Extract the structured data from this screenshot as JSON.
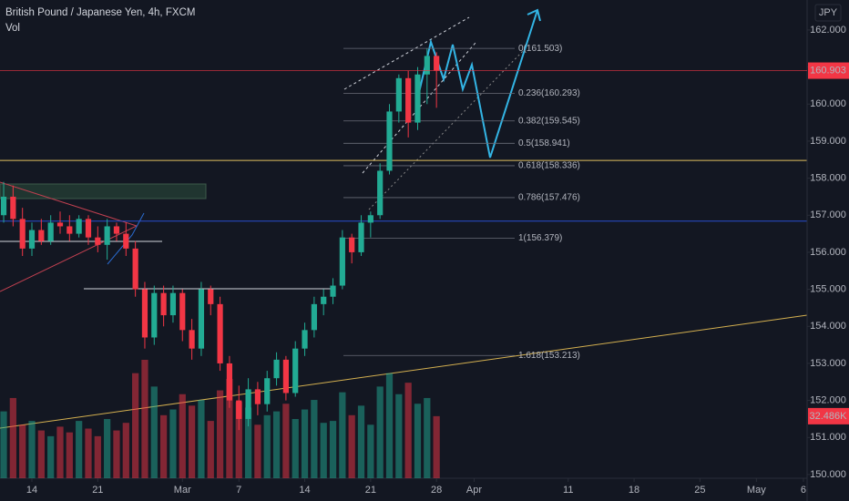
{
  "chart_data": {
    "type": "candlestick",
    "title": "British Pound / Japanese Yen, 4h, FXCM",
    "volume_title": "Vol",
    "currency": "JPY",
    "x": [
      11,
      12,
      13,
      14,
      15,
      16,
      17,
      18,
      19,
      20,
      21,
      22,
      23,
      24,
      25,
      26,
      27,
      28,
      29,
      30,
      31,
      32,
      33,
      34,
      35,
      36,
      37,
      38,
      39,
      40,
      41,
      42,
      43,
      44,
      45,
      46,
      47,
      48,
      49,
      50,
      51,
      52,
      53,
      54,
      55,
      56,
      57
    ],
    "ohlc": [
      [
        157.0,
        157.9,
        156.8,
        157.5
      ],
      [
        157.5,
        157.8,
        156.7,
        156.9
      ],
      [
        156.9,
        157.2,
        155.9,
        156.1
      ],
      [
        156.1,
        156.8,
        155.9,
        156.6
      ],
      [
        156.6,
        156.9,
        156.2,
        156.3
      ],
      [
        156.3,
        157.0,
        156.2,
        156.8
      ],
      [
        156.8,
        157.1,
        156.5,
        156.7
      ],
      [
        156.7,
        157.0,
        156.3,
        156.5
      ],
      [
        156.5,
        157.0,
        156.4,
        156.9
      ],
      [
        156.9,
        157.0,
        156.2,
        156.4
      ],
      [
        156.4,
        156.7,
        156.0,
        156.2
      ],
      [
        156.2,
        156.9,
        155.8,
        156.7
      ],
      [
        156.7,
        156.8,
        156.3,
        156.5
      ],
      [
        156.5,
        156.8,
        155.9,
        156.1
      ],
      [
        156.1,
        156.3,
        154.8,
        155.0
      ],
      [
        155.0,
        155.2,
        153.4,
        153.7
      ],
      [
        153.7,
        155.1,
        153.5,
        154.9
      ],
      [
        154.9,
        155.1,
        154.0,
        154.3
      ],
      [
        154.3,
        155.1,
        154.1,
        154.9
      ],
      [
        154.9,
        155.0,
        153.6,
        153.9
      ],
      [
        153.9,
        154.2,
        153.1,
        153.4
      ],
      [
        153.4,
        155.2,
        153.2,
        155.0
      ],
      [
        155.0,
        155.1,
        154.3,
        154.6
      ],
      [
        154.6,
        154.8,
        152.8,
        153.0
      ],
      [
        153.0,
        153.2,
        151.8,
        152.0
      ],
      [
        152.0,
        152.4,
        151.2,
        151.5
      ],
      [
        151.5,
        152.6,
        151.3,
        152.3
      ],
      [
        152.3,
        152.5,
        151.6,
        151.9
      ],
      [
        151.9,
        152.8,
        151.7,
        152.6
      ],
      [
        152.6,
        153.3,
        152.4,
        153.1
      ],
      [
        153.1,
        153.2,
        152.0,
        152.2
      ],
      [
        152.2,
        153.6,
        152.1,
        153.4
      ],
      [
        153.4,
        154.1,
        153.2,
        153.9
      ],
      [
        153.9,
        154.8,
        153.7,
        154.6
      ],
      [
        154.6,
        155.0,
        154.3,
        154.8
      ],
      [
        154.8,
        155.3,
        154.6,
        155.1
      ],
      [
        155.1,
        156.6,
        155.0,
        156.4
      ],
      [
        156.4,
        156.5,
        155.7,
        156.0
      ],
      [
        156.0,
        157.0,
        155.9,
        156.8
      ],
      [
        156.8,
        157.1,
        156.4,
        157.0
      ],
      [
        157.0,
        158.4,
        156.9,
        158.2
      ],
      [
        158.2,
        160.0,
        158.1,
        159.8
      ],
      [
        159.8,
        160.8,
        159.5,
        160.7
      ],
      [
        160.7,
        160.9,
        159.1,
        159.5
      ],
      [
        159.5,
        161.0,
        159.3,
        160.8
      ],
      [
        160.8,
        161.5,
        160.0,
        161.3
      ],
      [
        161.3,
        161.4,
        159.9,
        160.903
      ]
    ],
    "volume": [
      35,
      42,
      28,
      30,
      25,
      22,
      27,
      24,
      30,
      26,
      22,
      31,
      25,
      29,
      55,
      62,
      48,
      33,
      36,
      44,
      38,
      41,
      30,
      46,
      52,
      40,
      37,
      28,
      33,
      35,
      39,
      31,
      36,
      41,
      29,
      30,
      45,
      33,
      38,
      28,
      48,
      55,
      44,
      50,
      39,
      42,
      32.486
    ],
    "volume_label": "32.486K",
    "up_color": "#22ab94",
    "down_color": "#f23645",
    "last_price": 160.903,
    "xlim": [
      10.61,
      96.39
    ],
    "xticks": [
      {
        "value": 14,
        "label": "14"
      },
      {
        "value": 21,
        "label": "21"
      },
      {
        "value": 30,
        "label": "Mar"
      },
      {
        "value": 36,
        "label": "7"
      },
      {
        "value": 43,
        "label": "14"
      },
      {
        "value": 50,
        "label": "21"
      },
      {
        "value": 57,
        "label": "28"
      },
      {
        "value": 61,
        "label": "Apr"
      },
      {
        "value": 71,
        "label": "11"
      },
      {
        "value": 78,
        "label": "18"
      },
      {
        "value": 85,
        "label": "25"
      },
      {
        "value": 91,
        "label": "May"
      },
      {
        "value": 96,
        "label": "6"
      }
    ],
    "ylim": [
      149.9,
      162.81
    ],
    "yticks": [
      {
        "value": 150,
        "label": "150.000"
      },
      {
        "value": 151,
        "label": "151.000"
      },
      {
        "value": 152,
        "label": "152.000"
      },
      {
        "value": 153,
        "label": "153.000"
      },
      {
        "value": 154,
        "label": "154.000"
      },
      {
        "value": 155,
        "label": "155.000"
      },
      {
        "value": 156,
        "label": "156.000"
      },
      {
        "value": 157,
        "label": "157.000"
      },
      {
        "value": 158,
        "label": "158.000"
      },
      {
        "value": 159,
        "label": "159.000"
      },
      {
        "value": 160,
        "label": "160.000"
      },
      {
        "value": 161,
        "label": "161.000"
      },
      {
        "value": 162,
        "label": "162.000"
      }
    ],
    "fib_levels": [
      {
        "value": 161.503,
        "label": "0(161.503)"
      },
      {
        "value": 160.293,
        "label": "0.236(160.293)"
      },
      {
        "value": 159.545,
        "label": "0.382(159.545)"
      },
      {
        "value": 158.941,
        "label": "0.5(158.941)"
      },
      {
        "value": 158.336,
        "label": "0.618(158.336)"
      },
      {
        "value": 157.476,
        "label": "0.786(157.476)"
      },
      {
        "value": 156.379,
        "label": "1(156.379)"
      },
      {
        "value": 153.213,
        "label": "1.618(153.213)"
      }
    ],
    "horizontal_lines": [
      {
        "value": 158.48,
        "color": "#e0c060"
      },
      {
        "value": 156.84,
        "color": "#2a4fd0"
      }
    ]
  }
}
